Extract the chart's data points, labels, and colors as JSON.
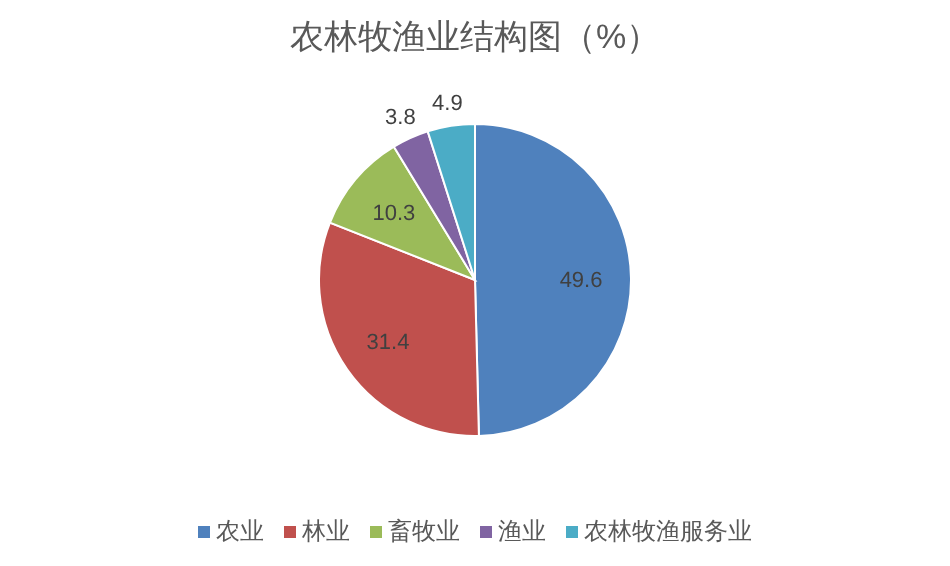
{
  "chart_data": {
    "type": "pie",
    "title": "农林牧渔业结构图（%）",
    "categories": [
      "农业",
      "林业",
      "畜牧业",
      "渔业",
      "农林牧渔服务业"
    ],
    "values": [
      49.6,
      31.4,
      10.3,
      3.8,
      4.9
    ],
    "colors": [
      "#4f81bd",
      "#c0504d",
      "#9bbb59",
      "#8064a2",
      "#4bacc6"
    ],
    "data_labels": true,
    "legend": "bottom"
  }
}
